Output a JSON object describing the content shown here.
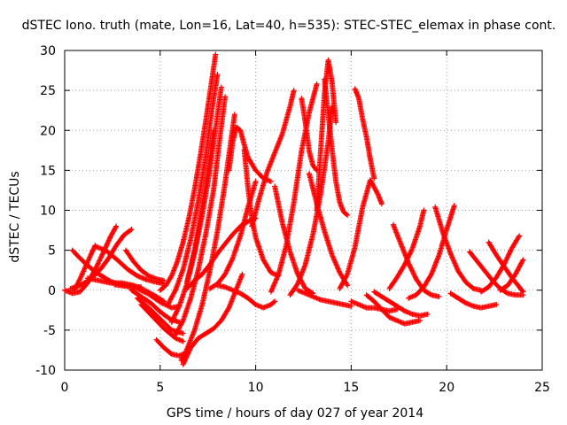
{
  "chart_data": {
    "type": "scatter",
    "title": "dSTEC Iono. truth (mate, Lon=16, Lat=40, h=535): STEC-STEC_elemax in phase cont.",
    "xlabel": "GPS time / hours of day 027 of year 2014",
    "ylabel": "dSTEC  / TECUs",
    "xlim": [
      0,
      25
    ],
    "ylim": [
      -10,
      30
    ],
    "x_ticks": [
      0,
      5,
      10,
      15,
      20,
      25
    ],
    "x_tick_labels": [
      "0",
      "5",
      "10",
      "15",
      "20",
      "25"
    ],
    "y_ticks": [
      -10,
      -5,
      0,
      5,
      10,
      15,
      20,
      25,
      30
    ],
    "y_tick_labels": [
      "-10",
      "-5",
      "0",
      "5",
      "10",
      "15",
      "20",
      "25",
      "30"
    ],
    "grid": true,
    "marker": "+",
    "series_color": "#ff0000",
    "arcs": [
      {
        "x": [
          0.0,
          0.4,
          0.8,
          1.2,
          1.6,
          2.0,
          2.4,
          2.7
        ],
        "y": [
          0.0,
          -0.4,
          -0.2,
          0.9,
          2.6,
          4.6,
          6.7,
          8.0
        ]
      },
      {
        "x": [
          0.3,
          0.7,
          1.1,
          1.5,
          1.9,
          2.3,
          2.7,
          3.1,
          3.5
        ],
        "y": [
          0.2,
          0.5,
          1.0,
          1.7,
          2.7,
          4.0,
          5.6,
          6.9,
          7.6
        ]
      },
      {
        "x": [
          0.5,
          0.8,
          1.1,
          1.4,
          1.6
        ],
        "y": [
          0.0,
          1.4,
          3.0,
          4.6,
          5.6
        ]
      },
      {
        "x": [
          0.4,
          0.8,
          1.2,
          1.6,
          2.0,
          2.4,
          2.8,
          3.2,
          3.6,
          4.0
        ],
        "y": [
          5.0,
          4.0,
          3.1,
          2.3,
          1.7,
          1.1,
          0.8,
          0.6,
          0.5,
          0.4
        ]
      },
      {
        "x": [
          1.2,
          1.8,
          2.4,
          3.0,
          3.6,
          4.2,
          4.8,
          5.2
        ],
        "y": [
          1.5,
          1.2,
          0.9,
          0.9,
          0.6,
          0.0,
          -0.8,
          -1.4
        ]
      },
      {
        "x": [
          2.6,
          3.2,
          3.8,
          4.4,
          5.0,
          5.6,
          6.0
        ],
        "y": [
          0.7,
          0.5,
          0.2,
          -0.5,
          -1.5,
          -2.2,
          -2.0
        ]
      },
      {
        "x": [
          1.6,
          2.2,
          2.8,
          3.3,
          3.8,
          4.3,
          4.8,
          5.2
        ],
        "y": [
          5.5,
          4.9,
          3.7,
          2.6,
          1.8,
          1.3,
          1.0,
          0.8
        ]
      },
      {
        "x": [
          3.2,
          3.6,
          4.0,
          4.4,
          4.8,
          5.2
        ],
        "y": [
          5.0,
          3.6,
          2.5,
          1.8,
          1.4,
          1.2
        ]
      },
      {
        "x": [
          3.5,
          4.0,
          4.5,
          5.0,
          5.5,
          6.0
        ],
        "y": [
          0.0,
          -0.8,
          -1.6,
          -2.7,
          -3.6,
          -4.0
        ]
      },
      {
        "x": [
          3.8,
          4.4,
          5.0,
          5.6,
          6.2
        ],
        "y": [
          -1.0,
          -2.2,
          -3.6,
          -5.0,
          -5.4
        ]
      },
      {
        "x": [
          4.0,
          4.6,
          5.2,
          5.8,
          6.2
        ],
        "y": [
          -1.8,
          -3.3,
          -4.8,
          -6.0,
          -6.4
        ]
      },
      {
        "x": [
          4.8,
          5.2,
          5.6,
          6.0,
          6.2
        ],
        "y": [
          -6.2,
          -7.2,
          -8.0,
          -8.2,
          -8.0
        ]
      },
      {
        "x": [
          5.0,
          5.3,
          5.6,
          5.9,
          6.2,
          6.5,
          6.8,
          7.1,
          7.4,
          7.7,
          7.9
        ],
        "y": [
          0.0,
          0.6,
          1.8,
          3.6,
          6.0,
          9.0,
          12.6,
          16.8,
          21.4,
          26.2,
          29.5
        ]
      },
      {
        "x": [
          5.4,
          5.8,
          6.2,
          6.6,
          7.0,
          7.4,
          7.7,
          8.0
        ],
        "y": [
          -1.8,
          0.0,
          2.6,
          6.4,
          11.2,
          17.0,
          22.4,
          27.0
        ]
      },
      {
        "x": [
          5.6,
          6.0,
          6.4,
          6.8,
          7.2,
          7.6,
          7.9,
          8.2
        ],
        "y": [
          -4.0,
          -2.0,
          0.8,
          4.6,
          9.4,
          15.0,
          20.2,
          25.4
        ]
      },
      {
        "x": [
          5.8,
          6.2,
          6.6,
          7.0,
          7.4,
          7.8,
          8.1,
          8.4
        ],
        "y": [
          -5.6,
          -3.8,
          -1.0,
          2.6,
          7.2,
          12.6,
          18.6,
          24.2
        ]
      },
      {
        "x": [
          6.1,
          6.4,
          6.8,
          7.2,
          7.6,
          8.0,
          8.4,
          8.7,
          8.9
        ],
        "y": [
          -8.8,
          -7.4,
          -5.0,
          -1.8,
          2.4,
          7.4,
          13.4,
          18.6,
          22.0
        ]
      },
      {
        "x": [
          6.2,
          6.6,
          7.0,
          7.4,
          7.8,
          8.2,
          8.6,
          9.0,
          9.3
        ],
        "y": [
          -9.3,
          -7.2,
          -6.0,
          -5.4,
          -4.8,
          -3.8,
          -2.2,
          0.2,
          2.0
        ]
      },
      {
        "x": [
          6.4,
          6.8,
          7.2,
          7.6,
          8.0,
          8.4,
          8.8,
          9.2,
          9.6,
          10.0
        ],
        "y": [
          0.2,
          1.2,
          2.0,
          3.2,
          4.6,
          5.8,
          7.0,
          8.0,
          8.6,
          9.0
        ]
      },
      {
        "x": [
          6.4,
          6.8,
          7.2,
          7.6,
          7.8
        ],
        "y": [
          1.0,
          5.0,
          10.4,
          16.4,
          20.0
        ]
      },
      {
        "x": [
          7.6,
          8.0,
          8.4,
          8.8,
          9.2,
          9.6,
          10.0
        ],
        "y": [
          0.2,
          0.8,
          2.0,
          4.0,
          6.8,
          10.4,
          13.6
        ]
      },
      {
        "x": [
          8.6,
          8.8,
          9.0,
          9.2,
          9.4,
          9.6,
          10.0,
          10.4,
          10.8
        ],
        "y": [
          15.0,
          18.6,
          20.4,
          20.0,
          18.2,
          16.6,
          15.0,
          14.0,
          13.6
        ]
      },
      {
        "x": [
          8.0,
          8.4,
          8.8,
          9.2,
          9.6,
          10.0,
          10.4,
          10.8,
          11.0
        ],
        "y": [
          0.6,
          0.4,
          0.0,
          -0.4,
          -1.0,
          -1.8,
          -2.2,
          -1.8,
          -1.4
        ]
      },
      {
        "x": [
          9.4,
          9.6,
          9.8,
          10.0,
          10.4,
          10.8,
          11.2
        ],
        "y": [
          17.6,
          12.8,
          9.0,
          6.6,
          3.8,
          2.2,
          1.8
        ]
      },
      {
        "x": [
          9.8,
          10.2,
          10.6,
          11.0,
          11.4,
          11.8,
          12.0
        ],
        "y": [
          8.0,
          11.6,
          14.8,
          17.2,
          19.6,
          23.0,
          25.0
        ]
      },
      {
        "x": [
          10.8,
          11.2,
          11.6,
          12.0,
          12.4,
          12.8,
          13.2
        ],
        "y": [
          -0.2,
          2.0,
          5.6,
          11.0,
          17.4,
          22.2,
          25.8
        ]
      },
      {
        "x": [
          11.0,
          11.4,
          11.8,
          12.2,
          12.6,
          13.0
        ],
        "y": [
          13.0,
          8.4,
          4.8,
          2.0,
          0.2,
          -0.4
        ]
      },
      {
        "x": [
          11.8,
          12.2,
          12.6,
          13.0,
          13.4,
          13.8,
          14.0
        ],
        "y": [
          -0.6,
          0.8,
          3.2,
          7.0,
          12.0,
          18.6,
          23.0
        ]
      },
      {
        "x": [
          12.4,
          12.6,
          12.8,
          13.0,
          13.2
        ],
        "y": [
          24.0,
          21.0,
          17.4,
          15.6,
          15.0
        ]
      },
      {
        "x": [
          12.8,
          13.2,
          13.6,
          14.0,
          14.4,
          14.8
        ],
        "y": [
          14.6,
          10.8,
          7.4,
          4.4,
          2.2,
          0.6
        ]
      },
      {
        "x": [
          13.2,
          13.4,
          13.6,
          13.8,
          14.0,
          14.2
        ],
        "y": [
          10.0,
          17.4,
          24.6,
          28.8,
          26.0,
          21.0
        ]
      },
      {
        "x": [
          13.6,
          13.8,
          14.0,
          14.2,
          14.4,
          14.6,
          14.8
        ],
        "y": [
          26.4,
          22.0,
          17.6,
          13.6,
          11.0,
          9.8,
          9.4
        ]
      },
      {
        "x": [
          12.2,
          12.6,
          13.0,
          13.4,
          13.8,
          14.2,
          14.6,
          15.0
        ],
        "y": [
          0.0,
          -0.4,
          -0.8,
          -1.2,
          -1.4,
          -1.6,
          -1.8,
          -2.0
        ]
      },
      {
        "x": [
          14.4,
          14.8,
          15.2,
          15.6,
          16.0,
          16.4,
          16.6
        ],
        "y": [
          0.2,
          2.0,
          5.4,
          10.4,
          13.8,
          12.0,
          10.8
        ]
      },
      {
        "x": [
          15.2,
          15.4,
          15.6,
          15.8,
          16.0,
          16.2
        ],
        "y": [
          25.2,
          24.0,
          21.4,
          19.2,
          16.4,
          14.0
        ]
      },
      {
        "x": [
          15.0,
          15.4,
          15.8,
          16.2,
          16.6,
          17.0,
          17.4
        ],
        "y": [
          -1.4,
          -1.8,
          -2.2,
          -2.2,
          -2.4,
          -2.6,
          -2.4
        ]
      },
      {
        "x": [
          15.8,
          16.2,
          16.6,
          17.0,
          17.4,
          17.8,
          18.2,
          18.6
        ],
        "y": [
          -0.6,
          -1.4,
          -2.4,
          -3.4,
          -3.8,
          -4.2,
          -4.0,
          -3.8
        ]
      },
      {
        "x": [
          16.2,
          16.6,
          17.0,
          17.4,
          17.8,
          18.2,
          18.6,
          19.0
        ],
        "y": [
          -0.2,
          -0.8,
          -1.4,
          -2.0,
          -2.6,
          -3.0,
          -3.2,
          -3.0
        ]
      },
      {
        "x": [
          17.0,
          17.4,
          17.8,
          18.2,
          18.6,
          18.8
        ],
        "y": [
          0.2,
          1.6,
          3.2,
          5.2,
          8.0,
          10.0
        ]
      },
      {
        "x": [
          17.2,
          17.6,
          18.0,
          18.4,
          18.8,
          19.2,
          19.6
        ],
        "y": [
          8.2,
          5.8,
          3.4,
          1.4,
          0.0,
          -0.6,
          -0.8
        ]
      },
      {
        "x": [
          18.0,
          18.4,
          18.8,
          19.2,
          19.6,
          20.0,
          20.4
        ],
        "y": [
          -1.0,
          -0.6,
          0.4,
          2.0,
          4.4,
          7.6,
          10.6
        ]
      },
      {
        "x": [
          19.4,
          19.8,
          20.2,
          20.6,
          21.0,
          21.4,
          21.8
        ],
        "y": [
          10.4,
          7.2,
          4.6,
          2.4,
          1.0,
          0.2,
          0.0
        ]
      },
      {
        "x": [
          20.2,
          20.6,
          21.0,
          21.4,
          21.8,
          22.2,
          22.6
        ],
        "y": [
          -0.4,
          -1.0,
          -1.6,
          -2.0,
          -2.2,
          -2.0,
          -1.8
        ]
      },
      {
        "x": [
          21.2,
          21.6,
          22.0,
          22.4,
          22.8,
          23.2,
          23.6,
          24.0
        ],
        "y": [
          4.8,
          3.6,
          2.4,
          1.2,
          0.2,
          -0.4,
          -0.6,
          -0.6
        ]
      },
      {
        "x": [
          21.8,
          22.2,
          22.6,
          23.0,
          23.4,
          23.8
        ],
        "y": [
          -0.2,
          0.4,
          1.6,
          3.2,
          5.2,
          6.8
        ]
      },
      {
        "x": [
          22.2,
          22.6,
          23.0,
          23.4,
          23.8,
          24.0
        ],
        "y": [
          6.0,
          4.4,
          3.0,
          1.6,
          0.4,
          -0.2
        ]
      },
      {
        "x": [
          22.8,
          23.2,
          23.6,
          24.0
        ],
        "y": [
          0.0,
          0.6,
          2.0,
          3.8
        ]
      }
    ]
  }
}
